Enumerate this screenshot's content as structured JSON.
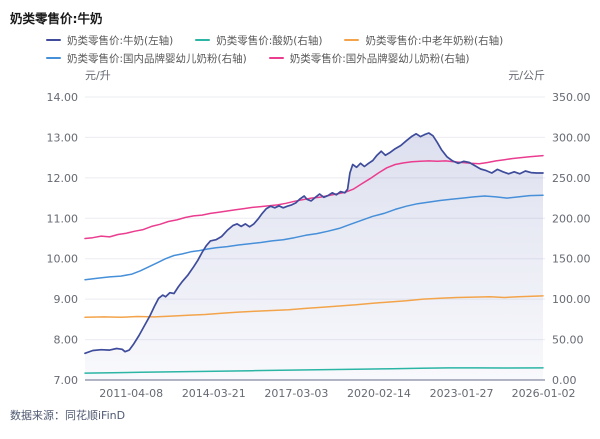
{
  "header": {
    "title": "奶类零售价:牛奶"
  },
  "footer": {
    "source": "数据来源：同花顺iFinD"
  },
  "chart_data": {
    "type": "line",
    "title": "奶类零售价:牛奶",
    "legend_position": "top",
    "grid": true,
    "x_axis": {
      "range": [
        2009.62,
        2026.05
      ],
      "ticks": [
        {
          "label": "2011-04-08",
          "year": 2011.27
        },
        {
          "label": "2014-03-21",
          "year": 2014.22
        },
        {
          "label": "2017-03-03",
          "year": 2017.17
        },
        {
          "label": "2020-02-14",
          "year": 2020.12
        },
        {
          "label": "2023-01-27",
          "year": 2023.07
        },
        {
          "label": "2026-01-02",
          "year": 2026.0
        }
      ]
    },
    "y_left": {
      "unit": "元/升",
      "range": [
        7,
        14
      ],
      "tick_step": 1,
      "tick_labels": [
        "7.00",
        "8.00",
        "9.00",
        "10.00",
        "11.00",
        "12.00",
        "13.00",
        "14.00"
      ]
    },
    "y_right": {
      "unit": "元/公斤",
      "range": [
        0,
        350
      ],
      "tick_step": 50,
      "tick_labels": [
        "0.00",
        "50.00",
        "100.00",
        "150.00",
        "200.00",
        "250.00",
        "300.00",
        "350.00"
      ]
    },
    "series": [
      {
        "id": "milk",
        "name": "奶类零售价:牛奶(左轴)",
        "axis": "left",
        "color": "#3e4c9b",
        "area": true,
        "row": 0,
        "points": [
          [
            2009.62,
            7.66
          ],
          [
            2009.9,
            7.73
          ],
          [
            2010.2,
            7.75
          ],
          [
            2010.5,
            7.74
          ],
          [
            2010.75,
            7.78
          ],
          [
            2010.95,
            7.76
          ],
          [
            2011.05,
            7.7
          ],
          [
            2011.2,
            7.74
          ],
          [
            2011.35,
            7.88
          ],
          [
            2011.55,
            8.1
          ],
          [
            2011.75,
            8.35
          ],
          [
            2011.95,
            8.6
          ],
          [
            2012.1,
            8.82
          ],
          [
            2012.25,
            9.02
          ],
          [
            2012.4,
            9.1
          ],
          [
            2012.5,
            9.06
          ],
          [
            2012.65,
            9.16
          ],
          [
            2012.8,
            9.14
          ],
          [
            2012.95,
            9.3
          ],
          [
            2013.1,
            9.44
          ],
          [
            2013.3,
            9.6
          ],
          [
            2013.5,
            9.8
          ],
          [
            2013.65,
            9.96
          ],
          [
            2013.8,
            10.15
          ],
          [
            2013.95,
            10.32
          ],
          [
            2014.1,
            10.44
          ],
          [
            2014.3,
            10.47
          ],
          [
            2014.5,
            10.55
          ],
          [
            2014.7,
            10.7
          ],
          [
            2014.9,
            10.82
          ],
          [
            2015.05,
            10.86
          ],
          [
            2015.2,
            10.8
          ],
          [
            2015.35,
            10.86
          ],
          [
            2015.5,
            10.79
          ],
          [
            2015.65,
            10.86
          ],
          [
            2015.8,
            10.98
          ],
          [
            2015.95,
            11.12
          ],
          [
            2016.1,
            11.24
          ],
          [
            2016.25,
            11.3
          ],
          [
            2016.4,
            11.26
          ],
          [
            2016.55,
            11.31
          ],
          [
            2016.7,
            11.26
          ],
          [
            2016.85,
            11.3
          ],
          [
            2017.0,
            11.33
          ],
          [
            2017.15,
            11.38
          ],
          [
            2017.3,
            11.48
          ],
          [
            2017.45,
            11.55
          ],
          [
            2017.55,
            11.47
          ],
          [
            2017.7,
            11.43
          ],
          [
            2017.85,
            11.52
          ],
          [
            2018.0,
            11.6
          ],
          [
            2018.15,
            11.52
          ],
          [
            2018.3,
            11.56
          ],
          [
            2018.45,
            11.63
          ],
          [
            2018.6,
            11.58
          ],
          [
            2018.75,
            11.66
          ],
          [
            2018.9,
            11.63
          ],
          [
            2019.0,
            11.72
          ],
          [
            2019.08,
            12.12
          ],
          [
            2019.18,
            12.33
          ],
          [
            2019.32,
            12.26
          ],
          [
            2019.46,
            12.36
          ],
          [
            2019.6,
            12.28
          ],
          [
            2019.75,
            12.36
          ],
          [
            2019.9,
            12.43
          ],
          [
            2020.05,
            12.56
          ],
          [
            2020.2,
            12.66
          ],
          [
            2020.35,
            12.56
          ],
          [
            2020.5,
            12.62
          ],
          [
            2020.7,
            12.72
          ],
          [
            2020.9,
            12.8
          ],
          [
            2021.1,
            12.92
          ],
          [
            2021.3,
            13.03
          ],
          [
            2021.45,
            13.09
          ],
          [
            2021.6,
            13.02
          ],
          [
            2021.75,
            13.07
          ],
          [
            2021.9,
            13.11
          ],
          [
            2022.05,
            13.04
          ],
          [
            2022.2,
            12.88
          ],
          [
            2022.35,
            12.7
          ],
          [
            2022.55,
            12.52
          ],
          [
            2022.75,
            12.42
          ],
          [
            2022.95,
            12.36
          ],
          [
            2023.15,
            12.41
          ],
          [
            2023.35,
            12.38
          ],
          [
            2023.55,
            12.3
          ],
          [
            2023.75,
            12.22
          ],
          [
            2023.95,
            12.18
          ],
          [
            2024.15,
            12.12
          ],
          [
            2024.35,
            12.21
          ],
          [
            2024.55,
            12.15
          ],
          [
            2024.75,
            12.1
          ],
          [
            2024.95,
            12.15
          ],
          [
            2025.15,
            12.1
          ],
          [
            2025.35,
            12.17
          ],
          [
            2025.55,
            12.13
          ],
          [
            2025.75,
            12.12
          ],
          [
            2025.98,
            12.12
          ]
        ]
      },
      {
        "id": "yogurt",
        "name": "奶类零售价:酸奶(右轴)",
        "axis": "right",
        "color": "#2ab5a5",
        "area": false,
        "row": 0,
        "points": [
          [
            2009.62,
            8.5
          ],
          [
            2010.6,
            9
          ],
          [
            2011.6,
            9.5
          ],
          [
            2012.6,
            10
          ],
          [
            2013.6,
            10.5
          ],
          [
            2014.6,
            11
          ],
          [
            2015.6,
            11.5
          ],
          [
            2016.6,
            12
          ],
          [
            2017.6,
            12.5
          ],
          [
            2018.6,
            13
          ],
          [
            2019.6,
            13.5
          ],
          [
            2020.6,
            14
          ],
          [
            2021.6,
            14.5
          ],
          [
            2022.6,
            15
          ],
          [
            2023.6,
            15
          ],
          [
            2024.6,
            14.8
          ],
          [
            2025.98,
            15
          ]
        ]
      },
      {
        "id": "elderly-milk-powder",
        "name": "奶类零售价:中老年奶粉(右轴)",
        "axis": "right",
        "color": "#f3a44a",
        "area": false,
        "row": 0,
        "points": [
          [
            2009.62,
            77.5
          ],
          [
            2010.3,
            78
          ],
          [
            2010.9,
            77.5
          ],
          [
            2011.5,
            78.5
          ],
          [
            2012.1,
            78
          ],
          [
            2012.7,
            79
          ],
          [
            2013.3,
            80
          ],
          [
            2013.9,
            81
          ],
          [
            2014.5,
            82.5
          ],
          [
            2015.1,
            84
          ],
          [
            2015.7,
            85
          ],
          [
            2016.3,
            86
          ],
          [
            2016.9,
            87
          ],
          [
            2017.5,
            88.5
          ],
          [
            2018.1,
            90
          ],
          [
            2018.7,
            91.5
          ],
          [
            2019.3,
            93
          ],
          [
            2019.9,
            95
          ],
          [
            2020.5,
            96.5
          ],
          [
            2021.1,
            98
          ],
          [
            2021.7,
            100
          ],
          [
            2022.3,
            101
          ],
          [
            2022.9,
            102
          ],
          [
            2023.5,
            102.5
          ],
          [
            2024.1,
            103
          ],
          [
            2024.6,
            102
          ],
          [
            2025.1,
            103
          ],
          [
            2025.98,
            104
          ]
        ]
      },
      {
        "id": "domestic-infant-formula",
        "name": "奶类零售价:国内品牌婴幼儿奶粉(右轴)",
        "axis": "right",
        "color": "#468fd9",
        "area": false,
        "row": 1,
        "points": [
          [
            2009.62,
            124
          ],
          [
            2010.1,
            126
          ],
          [
            2010.5,
            127.5
          ],
          [
            2010.9,
            128.5
          ],
          [
            2011.3,
            131
          ],
          [
            2011.6,
            135
          ],
          [
            2011.9,
            140
          ],
          [
            2012.2,
            145
          ],
          [
            2012.5,
            150
          ],
          [
            2012.8,
            154
          ],
          [
            2013.1,
            156
          ],
          [
            2013.4,
            158.5
          ],
          [
            2013.7,
            160
          ],
          [
            2014.0,
            162
          ],
          [
            2014.3,
            163.5
          ],
          [
            2014.7,
            165
          ],
          [
            2015.1,
            167
          ],
          [
            2015.5,
            168.5
          ],
          [
            2015.9,
            170
          ],
          [
            2016.3,
            172
          ],
          [
            2016.7,
            173.5
          ],
          [
            2017.1,
            176
          ],
          [
            2017.5,
            179
          ],
          [
            2017.9,
            181
          ],
          [
            2018.3,
            184
          ],
          [
            2018.7,
            187.5
          ],
          [
            2019.1,
            192.5
          ],
          [
            2019.5,
            197.5
          ],
          [
            2019.9,
            202.5
          ],
          [
            2020.3,
            206
          ],
          [
            2020.7,
            211
          ],
          [
            2021.1,
            215
          ],
          [
            2021.5,
            218
          ],
          [
            2021.9,
            220
          ],
          [
            2022.3,
            222
          ],
          [
            2022.7,
            223.5
          ],
          [
            2023.1,
            225
          ],
          [
            2023.5,
            226.5
          ],
          [
            2023.9,
            227.5
          ],
          [
            2024.3,
            226.5
          ],
          [
            2024.7,
            225
          ],
          [
            2025.1,
            226.5
          ],
          [
            2025.5,
            228
          ],
          [
            2025.98,
            228.5
          ]
        ]
      },
      {
        "id": "foreign-infant-formula",
        "name": "奶类零售价:国外品牌婴幼儿奶粉(右轴)",
        "axis": "right",
        "color": "#ea3d8f",
        "area": false,
        "row": 1,
        "points": [
          [
            2009.62,
            175
          ],
          [
            2009.9,
            176
          ],
          [
            2010.2,
            178
          ],
          [
            2010.5,
            177
          ],
          [
            2010.8,
            180
          ],
          [
            2011.1,
            181.5
          ],
          [
            2011.4,
            184
          ],
          [
            2011.7,
            186
          ],
          [
            2012.0,
            190
          ],
          [
            2012.3,
            192.5
          ],
          [
            2012.6,
            196
          ],
          [
            2012.9,
            198
          ],
          [
            2013.2,
            201
          ],
          [
            2013.5,
            203
          ],
          [
            2013.8,
            204
          ],
          [
            2014.1,
            206
          ],
          [
            2014.4,
            207.5
          ],
          [
            2014.7,
            209
          ],
          [
            2015.0,
            210.5
          ],
          [
            2015.3,
            212
          ],
          [
            2015.6,
            213.5
          ],
          [
            2015.9,
            214.5
          ],
          [
            2016.2,
            215.5
          ],
          [
            2016.5,
            216.5
          ],
          [
            2016.8,
            218.5
          ],
          [
            2017.1,
            221
          ],
          [
            2017.4,
            223
          ],
          [
            2017.7,
            225
          ],
          [
            2018.0,
            226
          ],
          [
            2018.3,
            228
          ],
          [
            2018.6,
            230
          ],
          [
            2018.9,
            232
          ],
          [
            2019.2,
            236
          ],
          [
            2019.5,
            242.5
          ],
          [
            2019.8,
            249
          ],
          [
            2020.1,
            256
          ],
          [
            2020.4,
            262.5
          ],
          [
            2020.7,
            266.5
          ],
          [
            2021.0,
            268.5
          ],
          [
            2021.3,
            270
          ],
          [
            2021.6,
            270.5
          ],
          [
            2021.9,
            271
          ],
          [
            2022.2,
            270.5
          ],
          [
            2022.5,
            271
          ],
          [
            2022.8,
            270
          ],
          [
            2023.1,
            269
          ],
          [
            2023.4,
            268
          ],
          [
            2023.7,
            267.5
          ],
          [
            2024.0,
            269
          ],
          [
            2024.3,
            271
          ],
          [
            2024.6,
            272.5
          ],
          [
            2024.9,
            274
          ],
          [
            2025.2,
            275
          ],
          [
            2025.5,
            276
          ],
          [
            2025.98,
            277.5
          ]
        ]
      }
    ],
    "style": {
      "grid_color": "#ebecf2",
      "axis_line_color": "#b2b5c3",
      "tick_text_color": "#666a73",
      "area_fill_color": "#6470b4"
    }
  }
}
